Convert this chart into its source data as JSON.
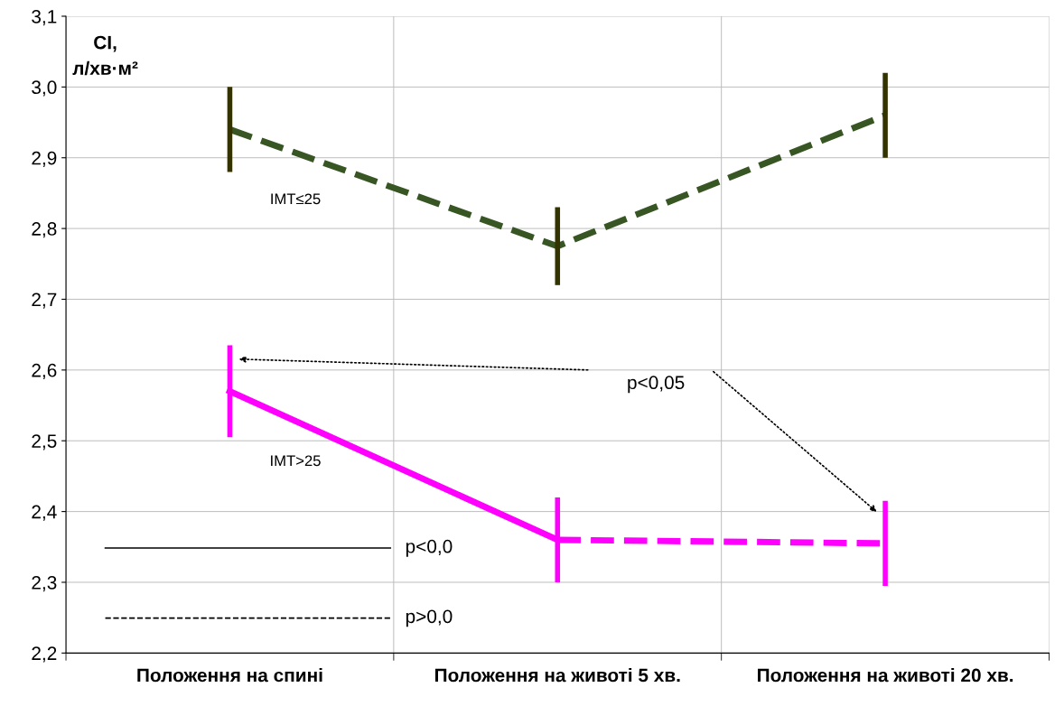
{
  "chart_data": {
    "type": "line",
    "ylabel": "CI,\nл/хв·м²",
    "categories": [
      "Положення на спині",
      "Положення на животі 5 хв.",
      "Положення на животі 20 хв."
    ],
    "series": [
      {
        "name": "IMT≤25",
        "color": "#375623",
        "values": [
          2.94,
          2.775,
          2.96
        ],
        "errors": [
          0.06,
          0.055,
          0.06
        ],
        "line_style": "dashed"
      },
      {
        "name": "IMT>25",
        "color": "#ff00ff",
        "values": [
          2.57,
          2.36,
          null
        ],
        "errors": [
          0.065,
          0.06,
          null
        ],
        "line_style": "solid"
      },
      {
        "color": "#ff00ff",
        "values": [
          null,
          2.36,
          2.355
        ],
        "errors": [
          null,
          null,
          0.06
        ],
        "line_style": "dashed"
      }
    ],
    "ylim": [
      2.2,
      3.1
    ],
    "yticks": [
      {
        "value": 2.2,
        "label": "2,2"
      },
      {
        "value": 2.3,
        "label": "2,3"
      },
      {
        "value": 2.4,
        "label": "2,4"
      },
      {
        "value": 2.5,
        "label": "2,5"
      },
      {
        "value": 2.6,
        "label": "2,6"
      },
      {
        "value": 2.7,
        "label": "2,7"
      },
      {
        "value": 2.8,
        "label": "2,8"
      },
      {
        "value": 2.9,
        "label": "2,9"
      },
      {
        "value": 3.0,
        "label": "3,0"
      },
      {
        "value": 3.1,
        "label": "3,1"
      }
    ],
    "grid": true,
    "marker": "none",
    "annotations": [
      "p<0,05",
      "p<0,0",
      "p>0,0"
    ]
  }
}
